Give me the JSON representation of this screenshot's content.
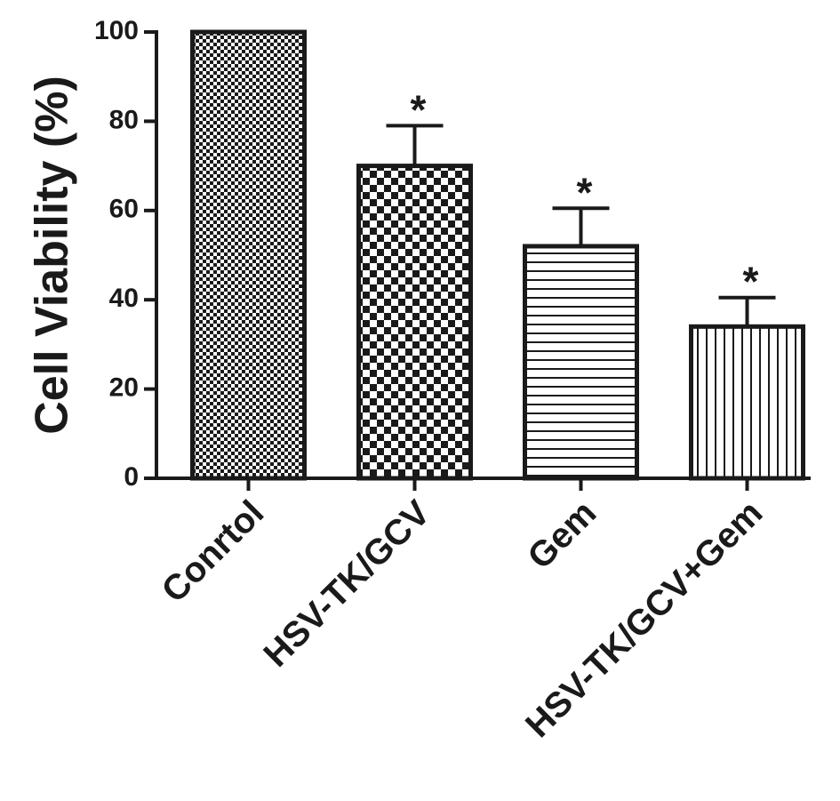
{
  "chart_data": {
    "type": "bar",
    "title": "",
    "xlabel": "",
    "ylabel": "Cell Viability (%)",
    "ylim": [
      0,
      100
    ],
    "yticks": [
      0,
      20,
      40,
      60,
      80,
      100
    ],
    "categories": [
      "Conrtol",
      "HSV-TK/GCV",
      "Gem",
      "HSV-TK/GCV+Gem"
    ],
    "values": [
      100,
      70,
      52,
      34
    ],
    "error_upper": [
      0,
      9,
      8.5,
      6.5
    ],
    "significance": [
      "",
      "*",
      "*",
      "*"
    ],
    "bar_patterns": [
      "fine-checker",
      "coarse-checker",
      "horizontal-lines",
      "vertical-lines"
    ],
    "colors": {
      "ink": "#1a1a1a",
      "background": "#ffffff"
    },
    "grid": false
  }
}
